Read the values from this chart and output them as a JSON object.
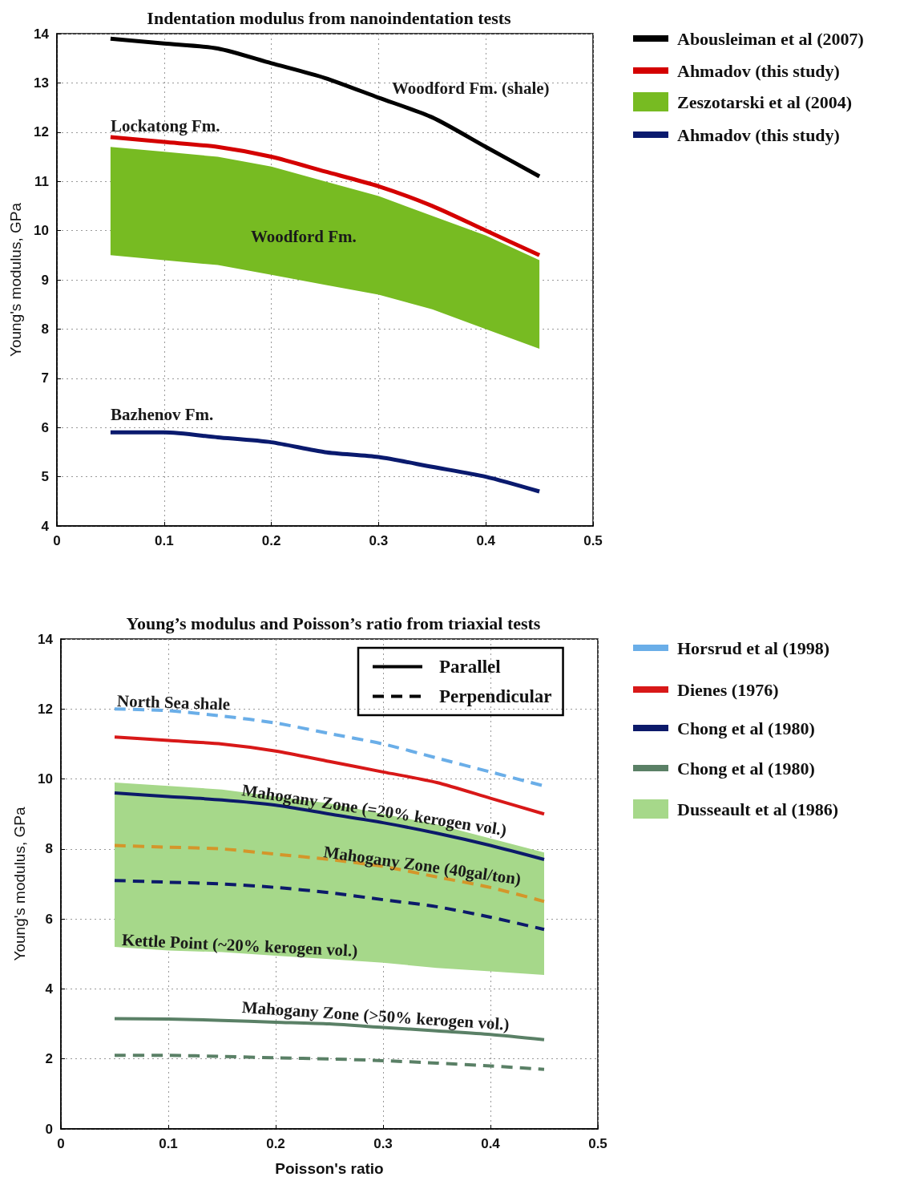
{
  "chart_data": [
    {
      "type": "line",
      "title": "Indentation modulus from nanoindentation tests",
      "ylabel": "Young's modulus, GPa",
      "x": [
        0.05,
        0.1,
        0.15,
        0.2,
        0.25,
        0.3,
        0.35,
        0.4,
        0.45
      ],
      "xlim": [
        0,
        0.5
      ],
      "xticks": [
        0,
        0.1,
        0.2,
        0.3,
        0.4,
        0.5
      ],
      "ylim": [
        4,
        14
      ],
      "yticks": [
        4,
        5,
        6,
        7,
        8,
        9,
        10,
        11,
        12,
        13,
        14
      ],
      "grid": true,
      "legend": "right",
      "marker": "none",
      "series": [
        {
          "name": "Abousleiman et al (2007)",
          "color": "#000000",
          "values": [
            13.9,
            13.8,
            13.7,
            13.4,
            13.1,
            12.7,
            12.3,
            11.7,
            11.1
          ]
        },
        {
          "name": "Ahmadov (this study)",
          "color": "#d40000",
          "values": [
            11.9,
            11.8,
            11.7,
            11.5,
            11.2,
            10.9,
            10.5,
            10.0,
            9.5
          ]
        },
        {
          "name": "Zeszotarski et al (2004)",
          "color": "#77bb22",
          "values": [
            null,
            null,
            null,
            null,
            null,
            null,
            null,
            null,
            null
          ],
          "lower": [
            9.5,
            9.4,
            9.3,
            9.1,
            8.9,
            8.7,
            8.4,
            8.0,
            7.6
          ],
          "upper": [
            11.7,
            11.6,
            11.5,
            11.3,
            11.0,
            10.7,
            10.3,
            9.9,
            9.4
          ]
        },
        {
          "name": "Ahmadov (this study)",
          "color": "#0a1a6e",
          "values": [
            5.9,
            5.9,
            5.8,
            5.7,
            5.5,
            5.4,
            5.2,
            5.0,
            4.7
          ]
        }
      ],
      "annotations": [
        "Woodford Fm. (shale)",
        "Lockatong Fm.",
        "Woodford Fm.",
        "Bazhenov Fm."
      ]
    },
    {
      "type": "line",
      "title": "Young’s modulus and Poisson’s ratio from triaxial tests",
      "xlabel": "Poisson's ratio",
      "ylabel": "Young's modulus, GPa",
      "x": [
        0.05,
        0.1,
        0.15,
        0.2,
        0.25,
        0.3,
        0.35,
        0.4,
        0.45
      ],
      "xlim": [
        0,
        0.5
      ],
      "xticks": [
        0,
        0.1,
        0.2,
        0.3,
        0.4,
        0.5
      ],
      "ylim": [
        0,
        14
      ],
      "yticks": [
        0,
        2,
        4,
        6,
        8,
        10,
        12,
        14
      ],
      "grid": true,
      "legend": "right",
      "marker": "none",
      "series": [
        {
          "name": "Horsrud et al (1998)",
          "color": "#6aaee8",
          "line_style": "dashed",
          "values": [
            12.0,
            11.95,
            11.8,
            11.6,
            11.3,
            11.0,
            10.6,
            10.2,
            9.8
          ]
        },
        {
          "name": "Dienes (1976)",
          "color": "#d81818",
          "values": [
            11.2,
            11.1,
            11.0,
            10.8,
            10.5,
            10.2,
            9.9,
            9.45,
            9.0
          ]
        },
        {
          "name": "Chong et al (1980)",
          "color": "#0c1a6a",
          "values": [
            9.6,
            9.5,
            9.4,
            9.25,
            9.0,
            8.75,
            8.45,
            8.1,
            7.7
          ]
        },
        {
          "name": "Chong et al (1980)",
          "color": "#5a8066",
          "values": [
            3.15,
            3.14,
            3.1,
            3.05,
            3.0,
            2.9,
            2.8,
            2.7,
            2.55
          ]
        },
        {
          "name": "Dusseault et al (1986)",
          "color": "#a6d88a",
          "values": [
            null,
            null,
            null,
            null,
            null,
            null,
            null,
            null,
            null
          ],
          "lower": [
            5.2,
            5.1,
            5.05,
            4.95,
            4.85,
            4.75,
            4.6,
            4.5,
            4.4
          ],
          "upper": [
            9.9,
            9.8,
            9.7,
            9.5,
            9.3,
            9.0,
            8.7,
            8.3,
            7.9
          ]
        },
        {
          "color": "#d4962a",
          "line_style": "dashed",
          "values": [
            8.1,
            8.05,
            8.0,
            7.85,
            7.7,
            7.5,
            7.2,
            6.9,
            6.5
          ]
        },
        {
          "color": "#0c1a6a",
          "line_style": "dashed",
          "values": [
            7.1,
            7.05,
            7.0,
            6.9,
            6.75,
            6.55,
            6.35,
            6.05,
            5.7
          ]
        },
        {
          "color": "#5a8066",
          "line_style": "dashed",
          "values": [
            2.1,
            2.1,
            2.07,
            2.03,
            2.0,
            1.95,
            1.88,
            1.8,
            1.7
          ]
        },
        {
          "name": "Parallel",
          "color": "#000000",
          "values": [
            null,
            null,
            null,
            null,
            null,
            null,
            null,
            null,
            null
          ]
        },
        {
          "name": "Perpendicular",
          "color": "#000000",
          "line_style": "dashed",
          "values": [
            null,
            null,
            null,
            null,
            null,
            null,
            null,
            null,
            null
          ]
        }
      ],
      "annotations": [
        "North Sea shale",
        "Mahogany Zone (=20% kerogen vol.)",
        "Mahogany Zone (40gal/ton)",
        "Kettle Point (~20% kerogen vol.)",
        "Mahogany Zone (>50% kerogen vol.)"
      ]
    }
  ]
}
